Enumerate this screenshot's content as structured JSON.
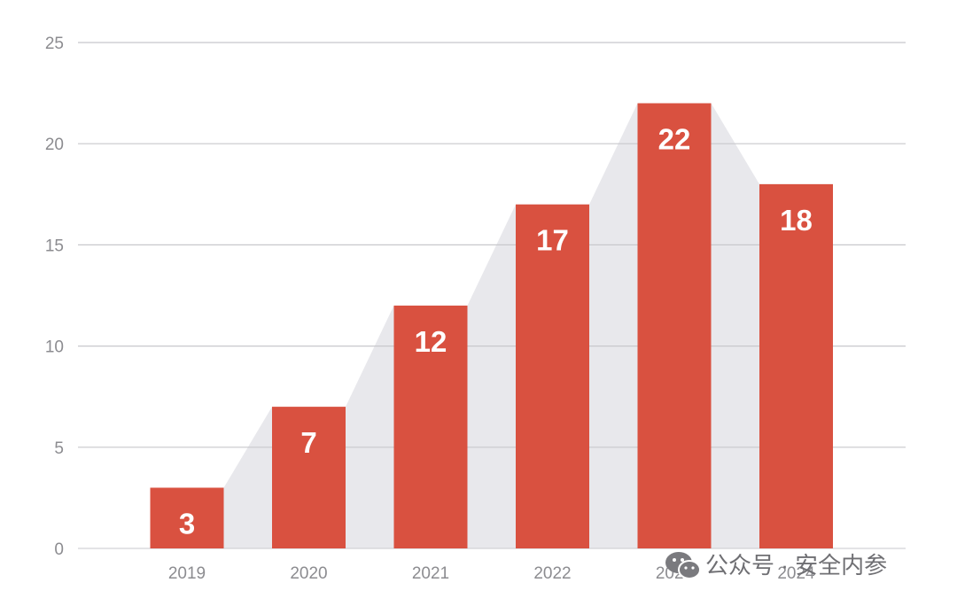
{
  "chart_data": {
    "type": "bar",
    "categories": [
      "2019",
      "2020",
      "2021",
      "2022",
      "2023",
      "2024"
    ],
    "values": [
      3,
      7,
      12,
      17,
      22,
      18
    ],
    "yticks": [
      0,
      5,
      10,
      15,
      20,
      25
    ],
    "ylim": [
      0,
      25
    ],
    "grid": true,
    "legend": "none",
    "title": "",
    "xlabel": "",
    "ylabel": "",
    "colors": {
      "bar": "#d95140",
      "area": "#e8e8ec",
      "grid": "#c8c8cc",
      "axis_text": "#8c8c90"
    }
  },
  "watermark": {
    "text": "公众号 · 安全内参",
    "icon": "wechat-logo-icon"
  }
}
